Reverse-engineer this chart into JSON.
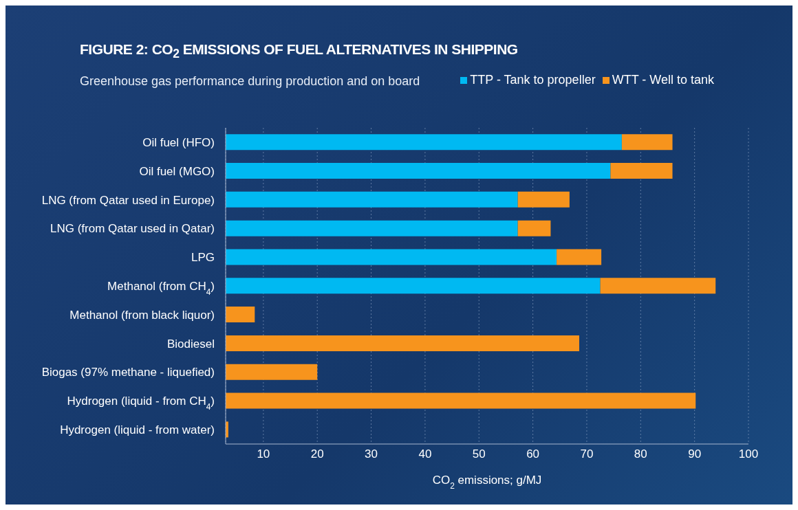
{
  "chart_data": {
    "type": "bar",
    "orientation": "horizontal",
    "stacked": true,
    "title": "FIGURE 2: CO$_{2}$ EMISSIONS OF FUEL ALTERNATIVES IN SHIPPING",
    "subtitle": "Greenhouse gas performance during production and on board",
    "xlabel": "CO$_{2}$ emissions; g/MJ",
    "categories": [
      "Oil fuel (HFO)",
      "Oil fuel (MGO)",
      "LNG (from Qatar used in Europe)",
      "LNG (from Qatar used in Qatar)",
      "LPG",
      "Methanol (from CH$_{4}$)",
      "Methanol (from black liquor)",
      "Biodiesel",
      "Biogas (97% methane - liquefied)",
      "Hydrogen (liquid - from CH$_{4}$)",
      "Hydrogen (liquid - from water)"
    ],
    "series": [
      {
        "name": "TTP - Tank to propeller",
        "color": "#00b9f2",
        "values": [
          76.5,
          74.4,
          57.2,
          57.2,
          64.4,
          72.5,
          null,
          null,
          null,
          null,
          null
        ]
      },
      {
        "name": "WTT - Well to tank",
        "color": "#f7941d",
        "values": [
          9.4,
          11.5,
          9.6,
          6.1,
          8.3,
          21.4,
          8.4,
          68.6,
          20.0,
          90.2,
          3.5
        ]
      }
    ],
    "xlim": [
      3,
      100
    ],
    "xticks": [
      10,
      20,
      30,
      40,
      50,
      60,
      70,
      80,
      90,
      100
    ],
    "grid": "x",
    "legend": "top right"
  }
}
